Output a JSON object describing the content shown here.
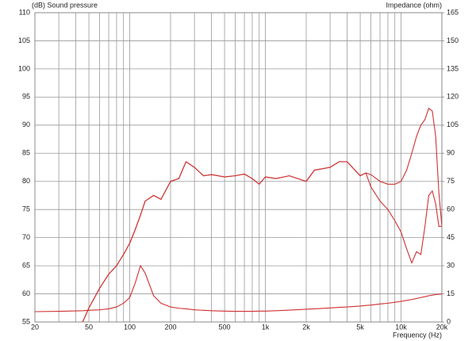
{
  "chart_data": {
    "type": "line",
    "title_left": "(dB)  Sound pressure",
    "title_right": "Impedance  (ohm)",
    "xlabel": "Frequency  (Hz)",
    "xscale": "log",
    "grid": true,
    "xlim": [
      20,
      20000
    ],
    "xticks": [
      20,
      50,
      100,
      200,
      500,
      {
        "value": 1000,
        "label": "1k"
      },
      {
        "value": 2000,
        "label": "2k"
      },
      {
        "value": 5000,
        "label": "5k"
      },
      {
        "value": 10000,
        "label": "10k"
      },
      {
        "value": 20000,
        "label": "20k"
      }
    ],
    "x_minor_grid": [
      30,
      40,
      60,
      70,
      80,
      90,
      300,
      400,
      600,
      700,
      800,
      900,
      3000,
      4000,
      6000,
      7000,
      8000,
      9000
    ],
    "ylim": [
      55,
      110
    ],
    "yticks": [
      55,
      60,
      65,
      70,
      75,
      80,
      85,
      90,
      95,
      100,
      105,
      110
    ],
    "y2lim": [
      0,
      165
    ],
    "y2ticks": [
      0,
      15,
      30,
      45,
      60,
      75,
      90,
      105,
      120,
      135,
      150,
      165
    ],
    "x": [
      20,
      30,
      40,
      45,
      50,
      60,
      70,
      80,
      90,
      100,
      110,
      120,
      130,
      150,
      170,
      200,
      230,
      260,
      300,
      350,
      400,
      500,
      600,
      700,
      800,
      900,
      1000,
      1200,
      1500,
      2000,
      2300,
      3000,
      3500,
      4000,
      5000,
      5500,
      6000,
      7000,
      8000,
      9000,
      10000,
      11000,
      12000,
      13000,
      14000,
      15000,
      16000,
      17000,
      18000,
      19000,
      20000
    ],
    "series": [
      {
        "color": "#d03030",
        "values": [
          null,
          null,
          null,
          55,
          57.5,
          61,
          63.5,
          65,
          67,
          69,
          71.5,
          74,
          76.5,
          77.5,
          76.8,
          80,
          80.5,
          83.5,
          82.5,
          81,
          81.2,
          80.8,
          81,
          81.3,
          80.5,
          79.5,
          80.8,
          80.5,
          81,
          80,
          82,
          82.5,
          83.5,
          83.5,
          81,
          81.5,
          81.2,
          80,
          79.5,
          79.5,
          80,
          82,
          85,
          88,
          90,
          91,
          93,
          92.5,
          88,
          78,
          72
        ]
      },
      {
        "color": "#d03030",
        "values": [
          null,
          null,
          null,
          55,
          57.5,
          61,
          63.5,
          65,
          67,
          69,
          71.5,
          74,
          76.5,
          77.5,
          76.8,
          80,
          80.5,
          83.5,
          82.5,
          81,
          81.2,
          80.8,
          81,
          81.3,
          80.5,
          79.5,
          80.8,
          80.5,
          81,
          80,
          82,
          82.5,
          83.5,
          83.5,
          81,
          81.5,
          79,
          76.5,
          75,
          73,
          71,
          68,
          65.5,
          67.5,
          67,
          72,
          77.5,
          78.3,
          76,
          72,
          72
        ]
      },
      {
        "color": "#d03030",
        "axis": "y2",
        "values": [
          5.5,
          5.7,
          5.9,
          6,
          6.2,
          6.5,
          7,
          8,
          10,
          13,
          21,
          30,
          26,
          14,
          10,
          8,
          7.3,
          7,
          6.5,
          6.2,
          6,
          5.8,
          5.7,
          5.7,
          5.7,
          5.8,
          5.8,
          6,
          6.3,
          6.8,
          7,
          7.5,
          7.8,
          8,
          8.5,
          8.8,
          9,
          9.6,
          10,
          10.5,
          11,
          11.5,
          12,
          12.5,
          13,
          13.5,
          14,
          14.3,
          14.6,
          14.8,
          15
        ]
      }
    ]
  }
}
